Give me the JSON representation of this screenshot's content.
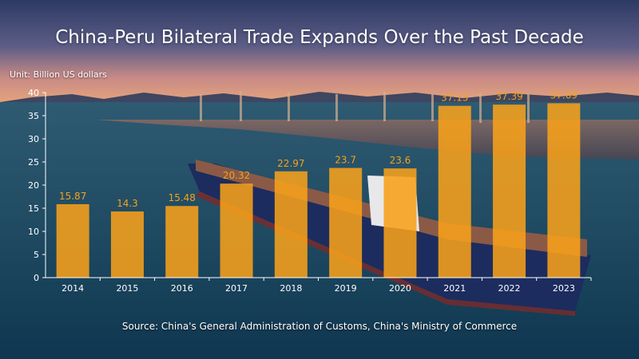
{
  "title": "China-Peru Bilateral Trade Expands Over the Past Decade",
  "unit_label": "Unit: Billion US dollars",
  "source": "Source: China's General Administration of Customs, China's Ministry of Commerce",
  "colors": {
    "bar": "#f7a01a",
    "value_label": "#f7a01a",
    "text": "#ffffff"
  },
  "chart_data": {
    "type": "bar",
    "categories": [
      "2014",
      "2015",
      "2016",
      "2017",
      "2018",
      "2019",
      "2020",
      "2021",
      "2022",
      "2023"
    ],
    "values": [
      15.87,
      14.3,
      15.48,
      20.32,
      22.97,
      23.7,
      23.6,
      37.13,
      37.39,
      37.69
    ],
    "value_labels": [
      "15.87",
      "14.3",
      "15.48",
      "20.32",
      "22.97",
      "23.7",
      "23.6",
      "37.13",
      "37.39",
      "37.69"
    ],
    "ylim": [
      0,
      40
    ],
    "yticks": [
      0,
      5,
      10,
      15,
      20,
      25,
      30,
      35,
      40
    ],
    "grid": false,
    "legend": "none"
  }
}
